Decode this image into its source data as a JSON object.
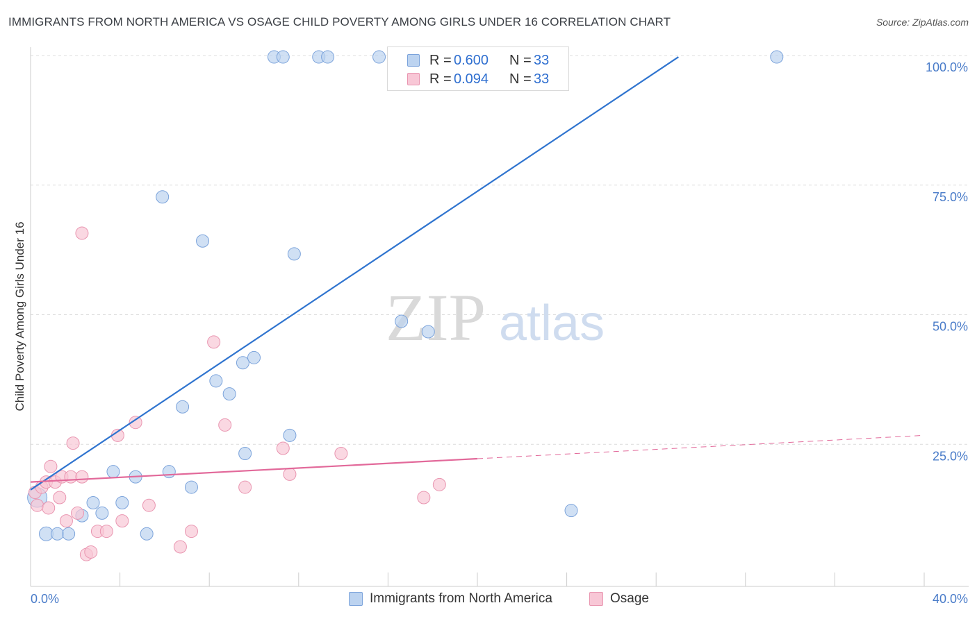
{
  "title": "IMMIGRANTS FROM NORTH AMERICA VS OSAGE CHILD POVERTY AMONG GIRLS UNDER 16 CORRELATION CHART",
  "source": "Source: ZipAtlas.com",
  "watermark": {
    "zip": "ZIP",
    "atlas": "atlas"
  },
  "legend_stats": [
    {
      "r_label": "R =",
      "r_value": "0.600",
      "n_label": "N =",
      "n_value": "33"
    },
    {
      "r_label": "R =",
      "r_value": "0.094",
      "n_label": "N =",
      "n_value": "33"
    }
  ],
  "chart_data": {
    "type": "scatter",
    "xlabel": "",
    "ylabel": "Child Poverty Among Girls Under 16",
    "xlim": [
      0,
      40
    ],
    "ylim": [
      0,
      100
    ],
    "x_tick_labels": {
      "min": "0.0%",
      "max": "40.0%"
    },
    "y_ticks": [
      {
        "value": 25,
        "label": "25.0%"
      },
      {
        "value": 50,
        "label": "50.0%"
      },
      {
        "value": 75,
        "label": "75.0%"
      },
      {
        "value": 100,
        "label": "100.0%"
      }
    ],
    "grid": true,
    "legend_position": "bottom",
    "colors": {
      "blue_fill": "#bcd3f0",
      "blue_stroke": "#7ba3db",
      "blue_line": "#2f74cf",
      "pink_fill": "#f8c7d6",
      "pink_stroke": "#e995b0",
      "pink_line": "#e2699a"
    },
    "series": [
      {
        "name": "Immigrants from North America",
        "color": "blue",
        "points": [
          [
            0.3,
            17.0,
            14
          ],
          [
            0.7,
            10.0,
            10
          ],
          [
            1.2,
            10.0,
            9
          ],
          [
            1.7,
            10.0,
            9
          ],
          [
            2.3,
            13.5,
            9
          ],
          [
            2.8,
            16.0,
            9
          ],
          [
            3.2,
            14.0,
            9
          ],
          [
            4.1,
            16.0,
            9
          ],
          [
            3.7,
            22.0,
            9
          ],
          [
            4.7,
            21.0,
            9
          ],
          [
            5.2,
            10.0,
            9
          ],
          [
            6.2,
            22.0,
            9
          ],
          [
            5.9,
            75.0,
            9
          ],
          [
            6.8,
            34.5,
            9
          ],
          [
            7.2,
            19.0,
            9
          ],
          [
            7.7,
            66.5,
            9
          ],
          [
            8.3,
            39.5,
            9
          ],
          [
            8.9,
            37.0,
            9
          ],
          [
            9.5,
            43.0,
            9
          ],
          [
            10.0,
            44.0,
            9
          ],
          [
            9.6,
            25.5,
            9
          ],
          [
            11.8,
            64.0,
            9
          ],
          [
            11.6,
            29.0,
            9
          ],
          [
            10.9,
            102.0,
            9
          ],
          [
            11.3,
            102.0,
            9
          ],
          [
            12.9,
            102.0,
            9
          ],
          [
            13.3,
            102.0,
            9
          ],
          [
            15.6,
            102.0,
            9
          ],
          [
            17.1,
            102.0,
            9
          ],
          [
            16.6,
            51.0,
            9
          ],
          [
            17.8,
            49.0,
            9
          ],
          [
            24.2,
            14.5,
            9
          ],
          [
            33.4,
            102.0,
            9
          ]
        ],
        "trend": {
          "x0": 0.0,
          "y0": 18.5,
          "x1": 29.0,
          "y1": 102.0
        }
      },
      {
        "name": "Osage",
        "color": "pink",
        "points": [
          [
            0.2,
            18.0,
            9
          ],
          [
            0.3,
            15.5,
            9
          ],
          [
            0.5,
            19.0,
            9
          ],
          [
            0.7,
            20.0,
            9
          ],
          [
            0.8,
            15.0,
            9
          ],
          [
            0.9,
            23.0,
            9
          ],
          [
            1.1,
            20.0,
            9
          ],
          [
            1.3,
            17.0,
            9
          ],
          [
            1.4,
            21.0,
            9
          ],
          [
            1.6,
            12.5,
            9
          ],
          [
            1.8,
            21.0,
            9
          ],
          [
            1.9,
            27.5,
            9
          ],
          [
            2.1,
            14.0,
            9
          ],
          [
            2.3,
            21.0,
            9
          ],
          [
            2.5,
            6.0,
            9
          ],
          [
            2.7,
            6.5,
            9
          ],
          [
            3.0,
            10.5,
            9
          ],
          [
            3.4,
            10.5,
            9
          ],
          [
            2.3,
            68.0,
            9
          ],
          [
            3.9,
            29.0,
            9
          ],
          [
            4.1,
            12.5,
            9
          ],
          [
            4.7,
            31.5,
            9
          ],
          [
            5.3,
            15.5,
            9
          ],
          [
            6.7,
            7.5,
            9
          ],
          [
            7.2,
            10.5,
            9
          ],
          [
            8.2,
            47.0,
            9
          ],
          [
            8.7,
            31.0,
            9
          ],
          [
            9.6,
            19.0,
            9
          ],
          [
            11.3,
            26.5,
            9
          ],
          [
            11.6,
            21.5,
            9
          ],
          [
            13.9,
            25.5,
            9
          ],
          [
            17.6,
            17.0,
            9
          ],
          [
            18.3,
            19.5,
            9
          ]
        ],
        "trend": {
          "x0": 0.0,
          "y0": 20.0,
          "x1": 20.0,
          "y1": 24.5
        },
        "trend_dashed": {
          "x0": 20.0,
          "y0": 24.5,
          "x1": 40.0,
          "y1": 29.0
        }
      }
    ]
  }
}
